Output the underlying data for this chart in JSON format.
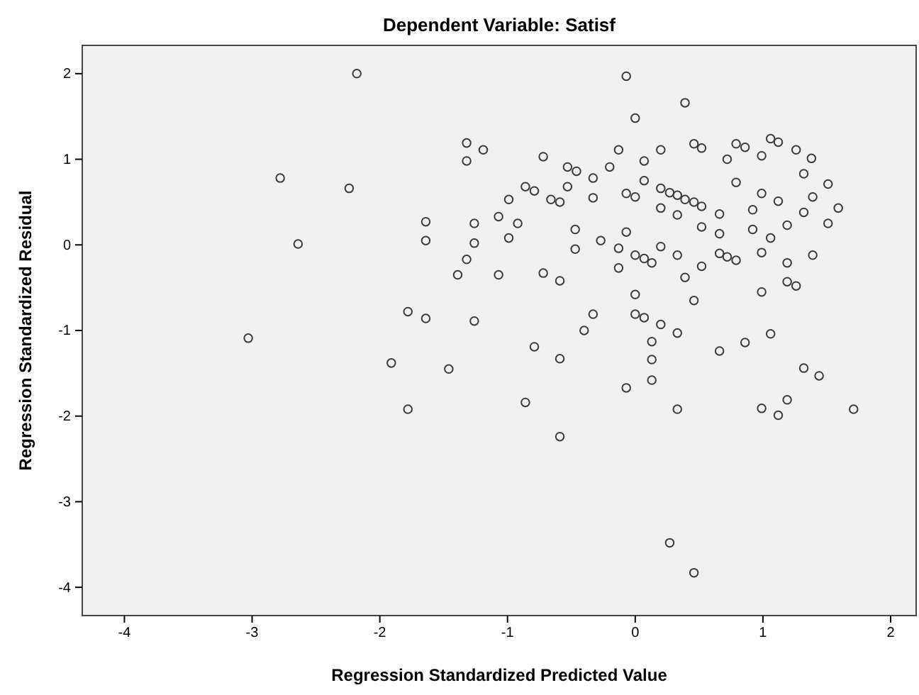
{
  "chart_data": {
    "type": "scatter",
    "title": "Dependent Variable: Satisf",
    "xlabel": "Regression Standardized Predicted Value",
    "ylabel": "Regression Standardized Residual",
    "xlim": [
      -4.33,
      2.2
    ],
    "ylim": [
      -4.33,
      2.33
    ],
    "xticks": [
      -4,
      -3,
      -2,
      -1,
      0,
      1,
      2
    ],
    "yticks": [
      -4,
      -3,
      -2,
      -1,
      0,
      1,
      2
    ],
    "marker": "circle",
    "series": [
      {
        "color": "#3a3a3a",
        "x": [
          -2.18,
          -2.78,
          -2.24,
          -2.64,
          -1.32,
          -1.19,
          -1.32,
          -1.64,
          -1.26,
          -1.64,
          -1.26,
          -1.32,
          -1.39,
          -1.07,
          -1.07,
          -1.78,
          -1.64,
          -1.26,
          -3.03,
          -1.91,
          -1.46,
          -1.78,
          -0.07,
          0.39,
          0.0,
          -0.72,
          -0.13,
          0.2,
          0.46,
          0.52,
          0.79,
          0.86,
          1.06,
          1.12,
          1.26,
          1.38,
          0.72,
          0.99,
          0.07,
          -0.2,
          -0.53,
          -0.46,
          -0.33,
          1.32,
          1.51,
          0.79,
          0.07,
          -0.86,
          -0.79,
          -0.53,
          -0.99,
          -0.66,
          -0.59,
          -0.33,
          -0.07,
          0.0,
          0.2,
          0.27,
          0.33,
          0.39,
          0.46,
          0.52,
          0.99,
          1.12,
          1.39,
          1.59,
          1.32,
          0.92,
          -0.92,
          0.2,
          0.33,
          0.66,
          1.51,
          1.19,
          -0.47,
          -0.07,
          0.52,
          0.66,
          0.92,
          1.06,
          -0.99,
          -0.27,
          -0.47,
          -0.13,
          0.2,
          0.0,
          0.07,
          0.13,
          0.33,
          0.66,
          0.72,
          0.79,
          0.99,
          1.39,
          1.19,
          -0.13,
          0.52,
          -0.72,
          -0.59,
          0.39,
          1.19,
          1.26,
          0.99,
          0.0,
          0.46,
          -0.33,
          0.0,
          0.07,
          0.2,
          0.33,
          -0.4,
          -0.79,
          -0.59,
          0.13,
          0.13,
          0.13,
          -0.07,
          0.66,
          0.86,
          1.06,
          1.32,
          1.44,
          1.19,
          0.99,
          1.12,
          1.71,
          0.33,
          -0.86,
          -0.59,
          0.27,
          0.46
        ],
        "values": [
          2.0,
          0.78,
          0.66,
          0.01,
          1.19,
          1.11,
          0.98,
          0.27,
          0.25,
          0.05,
          0.02,
          -0.17,
          -0.35,
          0.33,
          -0.35,
          -0.78,
          -0.86,
          -0.89,
          -1.09,
          -1.38,
          -1.45,
          -1.92,
          1.97,
          1.66,
          1.48,
          1.03,
          1.11,
          1.11,
          1.18,
          1.13,
          1.18,
          1.14,
          1.24,
          1.2,
          1.11,
          1.01,
          1.0,
          1.04,
          0.98,
          0.91,
          0.91,
          0.86,
          0.78,
          0.83,
          0.71,
          0.73,
          0.75,
          0.68,
          0.63,
          0.68,
          0.53,
          0.53,
          0.5,
          0.55,
          0.6,
          0.56,
          0.66,
          0.61,
          0.58,
          0.53,
          0.5,
          0.45,
          0.6,
          0.51,
          0.56,
          0.43,
          0.38,
          0.41,
          0.25,
          0.43,
          0.35,
          0.36,
          0.25,
          0.23,
          0.18,
          0.15,
          0.21,
          0.13,
          0.18,
          0.08,
          0.08,
          0.05,
          -0.05,
          -0.04,
          -0.02,
          -0.12,
          -0.16,
          -0.21,
          -0.12,
          -0.1,
          -0.14,
          -0.18,
          -0.09,
          -0.12,
          -0.21,
          -0.27,
          -0.25,
          -0.33,
          -0.42,
          -0.38,
          -0.43,
          -0.48,
          -0.55,
          -0.58,
          -0.65,
          -0.81,
          -0.81,
          -0.85,
          -0.93,
          -1.03,
          -1.0,
          -1.19,
          -1.33,
          -1.13,
          -1.34,
          -1.58,
          -1.67,
          -1.24,
          -1.14,
          -1.04,
          -1.44,
          -1.53,
          -1.81,
          -1.91,
          -1.99,
          -1.92,
          -1.92,
          -1.84,
          -2.24,
          -3.48,
          -3.83
        ]
      }
    ]
  }
}
